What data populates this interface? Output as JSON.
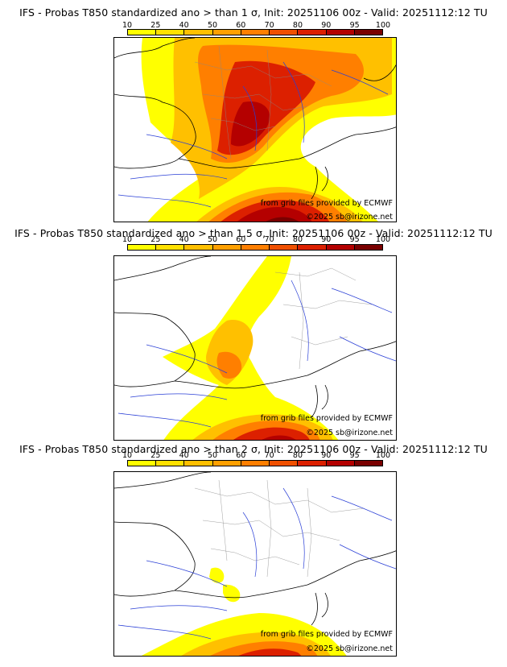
{
  "colorbar": {
    "ticks": [
      "10",
      "25",
      "40",
      "50",
      "60",
      "70",
      "80",
      "90",
      "95",
      "100"
    ],
    "colors": [
      "#ffff00",
      "#ffe100",
      "#ffc000",
      "#ffa000",
      "#ff7f00",
      "#f05000",
      "#dc2000",
      "#b40000",
      "#7a0000"
    ]
  },
  "credits": {
    "source": "from grib files provided by ECMWF",
    "copyright": "©2025 sb@irizone.net"
  },
  "panels": [
    {
      "title": "IFS - Probas T850  standardized ano > than 1 σ, Init: 20251106 00z - Valid: 20251112:12 TU",
      "threshold_sigma": 1
    },
    {
      "title": "IFS - Probas T850  standardized ano > than 1.5 σ, Init: 20251106 00z - Valid: 20251112:12 TU",
      "threshold_sigma": 1.5
    },
    {
      "title": "IFS - Probas T850  standardized ano > than 2 σ, Init: 20251106 00z - Valid: 20251112:12 TU",
      "threshold_sigma": 2
    }
  ]
}
